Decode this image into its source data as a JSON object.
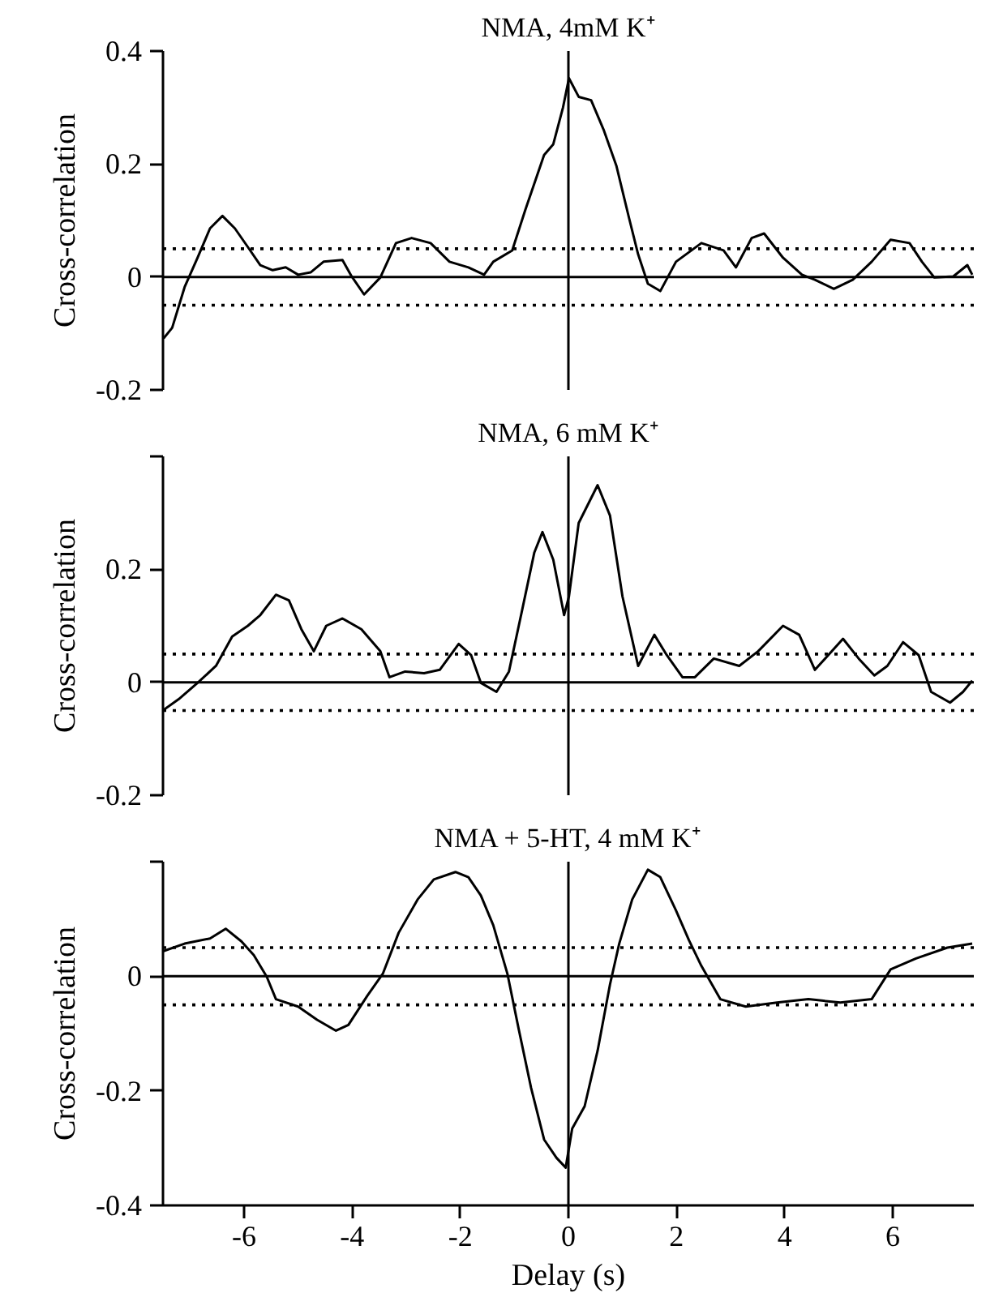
{
  "chart_data": [
    {
      "type": "line",
      "title": "NMA, 4mM K⁺",
      "ylabel": "Cross-correlation",
      "xlim": [
        -7.5,
        7.5
      ],
      "ylim": [
        -0.2,
        0.4
      ],
      "yticks": [
        -0.2,
        0,
        0.2,
        0.4
      ],
      "tick_labels": "y",
      "grid": false,
      "x": [
        -7.49,
        -7.33,
        -7.1,
        -6.86,
        -6.63,
        -6.4,
        -6.17,
        -5.93,
        -5.7,
        -5.47,
        -5.23,
        -5.0,
        -4.77,
        -4.53,
        -4.18,
        -4.01,
        -3.78,
        -3.48,
        -3.19,
        -2.9,
        -2.55,
        -2.2,
        -1.85,
        -1.56,
        -1.39,
        -1.04,
        -0.8,
        -0.45,
        -0.28,
        -0.1,
        0.01,
        0.19,
        0.42,
        0.65,
        0.89,
        1.12,
        1.29,
        1.47,
        1.7,
        1.99,
        2.46,
        2.87,
        3.1,
        3.39,
        3.62,
        3.97,
        4.32,
        4.56,
        4.91,
        5.26,
        5.61,
        5.96,
        6.31,
        6.54,
        6.77,
        7.12,
        7.38,
        7.47
      ],
      "series": [
        {
          "color": "#000000",
          "values": [
            -0.109,
            -0.09,
            -0.018,
            0.034,
            0.086,
            0.108,
            0.086,
            0.053,
            0.021,
            0.012,
            0.017,
            0.004,
            0.008,
            0.027,
            0.03,
            0.001,
            -0.031,
            -0.001,
            0.06,
            0.069,
            0.06,
            0.027,
            0.017,
            0.004,
            0.027,
            0.047,
            0.118,
            0.216,
            0.235,
            0.3,
            0.352,
            0.319,
            0.313,
            0.261,
            0.196,
            0.105,
            0.04,
            -0.012,
            -0.025,
            0.027,
            0.06,
            0.047,
            0.017,
            0.069,
            0.077,
            0.034,
            0.004,
            -0.005,
            -0.021,
            -0.005,
            0.027,
            0.066,
            0.06,
            0.027,
            -0.001,
            0.001,
            0.021,
            0.004
          ]
        }
      ],
      "ref_lines": [
        {
          "axis": "y",
          "value": 0,
          "color": "#000000",
          "line_style": "solid"
        },
        {
          "axis": "x",
          "value": 0,
          "color": "#000000",
          "line_style": "solid"
        },
        {
          "axis": "y",
          "value": 0.05,
          "color": "#000000",
          "line_style": "dotted"
        },
        {
          "axis": "y",
          "value": -0.05,
          "color": "#000000",
          "line_style": "dotted"
        }
      ]
    },
    {
      "type": "line",
      "title": "NMA, 6 mM K⁺",
      "ylabel": "Cross-correlation",
      "xlim": [
        -7.5,
        7.5
      ],
      "ylim": [
        -0.2,
        0.4
      ],
      "yticks": [
        -0.2,
        0,
        0.2,
        {
          "value": 0.4,
          "label": null
        }
      ],
      "tick_labels": "y",
      "grid": false,
      "x": [
        -7.49,
        -7.21,
        -6.86,
        -6.52,
        -6.22,
        -5.93,
        -5.7,
        -5.41,
        -5.17,
        -4.94,
        -4.71,
        -4.48,
        -4.18,
        -3.83,
        -3.48,
        -3.31,
        -3.02,
        -2.67,
        -2.38,
        -2.03,
        -1.8,
        -1.62,
        -1.33,
        -1.1,
        -0.86,
        -0.63,
        -0.48,
        -0.28,
        -0.08,
        0.01,
        0.19,
        0.54,
        0.77,
        1.0,
        1.29,
        1.59,
        1.82,
        2.11,
        2.34,
        2.69,
        3.16,
        3.51,
        3.97,
        4.27,
        4.56,
        5.08,
        5.37,
        5.66,
        5.9,
        6.19,
        6.48,
        6.71,
        7.06,
        7.3,
        7.47
      ],
      "series": [
        {
          "color": "#000000",
          "values": [
            -0.049,
            -0.03,
            -0.001,
            0.029,
            0.081,
            0.1,
            0.119,
            0.155,
            0.145,
            0.094,
            0.055,
            0.1,
            0.113,
            0.094,
            0.055,
            0.009,
            0.019,
            0.016,
            0.022,
            0.068,
            0.048,
            -0.001,
            -0.017,
            0.019,
            0.126,
            0.23,
            0.266,
            0.217,
            0.119,
            0.152,
            0.282,
            0.349,
            0.295,
            0.152,
            0.029,
            0.084,
            0.048,
            0.009,
            0.009,
            0.042,
            0.029,
            0.055,
            0.1,
            0.084,
            0.022,
            0.077,
            0.042,
            0.012,
            0.029,
            0.071,
            0.048,
            -0.017,
            -0.036,
            -0.017,
            0.003
          ]
        }
      ],
      "ref_lines": [
        {
          "axis": "y",
          "value": 0,
          "color": "#000000",
          "line_style": "solid"
        },
        {
          "axis": "x",
          "value": 0,
          "color": "#000000",
          "line_style": "solid"
        },
        {
          "axis": "y",
          "value": 0.05,
          "color": "#000000",
          "line_style": "dotted"
        },
        {
          "axis": "y",
          "value": -0.05,
          "color": "#000000",
          "line_style": "dotted"
        }
      ]
    },
    {
      "type": "line",
      "title": "NMA + 5-HT, 4 mM K⁺",
      "xlabel": "Delay (s)",
      "ylabel": "Cross-correlation",
      "xlim": [
        -7.5,
        7.5
      ],
      "xticks": [
        -6,
        -4,
        -2,
        0,
        2,
        4,
        6
      ],
      "ylim": [
        -0.4,
        0.2
      ],
      "yticks": [
        -0.4,
        -0.2,
        0,
        {
          "value": 0.2,
          "label": null
        }
      ],
      "grid": false,
      "x": [
        -7.49,
        -7.1,
        -6.63,
        -6.34,
        -6.05,
        -5.82,
        -5.58,
        -5.41,
        -5.0,
        -4.65,
        -4.3,
        -4.07,
        -3.72,
        -3.43,
        -3.14,
        -2.79,
        -2.49,
        -2.09,
        -1.85,
        -1.62,
        -1.39,
        -1.13,
        -0.92,
        -0.69,
        -0.45,
        -0.22,
        -0.05,
        0.07,
        0.3,
        0.54,
        0.77,
        0.94,
        1.18,
        1.47,
        1.7,
        1.99,
        2.23,
        2.46,
        2.81,
        3.28,
        3.86,
        4.44,
        5.03,
        5.61,
        5.96,
        6.43,
        7.01,
        7.47
      ],
      "series": [
        {
          "color": "#000000",
          "values": [
            0.044,
            0.057,
            0.066,
            0.083,
            0.061,
            0.037,
            -0.001,
            -0.04,
            -0.053,
            -0.076,
            -0.095,
            -0.085,
            -0.034,
            0.005,
            0.076,
            0.134,
            0.169,
            0.182,
            0.173,
            0.141,
            0.089,
            0.005,
            -0.092,
            -0.195,
            -0.285,
            -0.317,
            -0.334,
            -0.266,
            -0.227,
            -0.13,
            -0.014,
            0.057,
            0.134,
            0.186,
            0.173,
            0.115,
            0.063,
            0.018,
            -0.04,
            -0.053,
            -0.046,
            -0.04,
            -0.046,
            -0.04,
            0.012,
            0.031,
            0.05,
            0.057
          ]
        }
      ],
      "ref_lines": [
        {
          "axis": "y",
          "value": 0,
          "color": "#000000",
          "line_style": "solid"
        },
        {
          "axis": "x",
          "value": 0,
          "color": "#000000",
          "line_style": "solid"
        },
        {
          "axis": "y",
          "value": 0.05,
          "color": "#000000",
          "line_style": "dotted"
        },
        {
          "axis": "y",
          "value": -0.05,
          "color": "#000000",
          "line_style": "dotted"
        }
      ]
    }
  ]
}
